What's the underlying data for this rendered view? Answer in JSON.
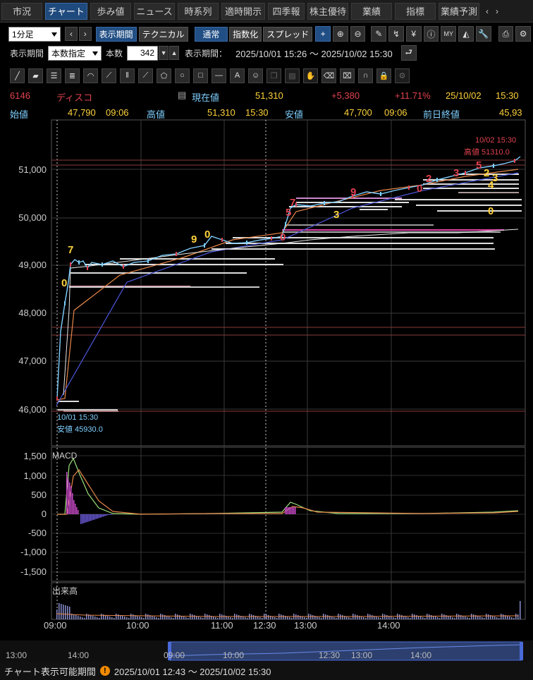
{
  "tabs": [
    {
      "label": "市況",
      "active": false
    },
    {
      "label": "チャート",
      "active": true
    },
    {
      "label": "歩み値",
      "active": false
    },
    {
      "label": "ニュース",
      "active": false
    },
    {
      "label": "時系列",
      "active": false
    },
    {
      "label": "適時開示",
      "active": false
    },
    {
      "label": "四季報",
      "active": false
    },
    {
      "label": "株主優待",
      "active": false
    },
    {
      "label": "業績",
      "active": false
    },
    {
      "label": "指標",
      "active": false
    },
    {
      "label": "業績予測",
      "active": false
    }
  ],
  "toolbar": {
    "interval": "1分足",
    "period_button": "表示期間",
    "technical_button": "テクニカル",
    "normal_button": "通常",
    "index_button": "指数化",
    "spread_button": "スプレッド",
    "icons": [
      "plus-icon",
      "zoom-in-icon",
      "zoom-out-icon",
      "pen-icon",
      "signal-icon",
      "yen-icon",
      "info-icon",
      "my-icon",
      "area-chart-icon",
      "wrench-icon",
      "print-icon",
      "settings-icon"
    ]
  },
  "period": {
    "label": "表示期間",
    "mode": "本数指定",
    "count_label": "本数",
    "count": "342",
    "range_label": "表示期間：",
    "range": "2025/10/01 15:26 ～ 2025/10/02 15:30"
  },
  "drawing_tools": [
    "line-tool-icon",
    "ruler-icon",
    "hlines-icon",
    "hlines-dense-icon",
    "arc-icon",
    "fan-icon",
    "vlines-icon",
    "fib-icon",
    "pentagon-icon",
    "circle-icon",
    "rectangle-icon",
    "hline-icon",
    "text-icon",
    "sticker-icon",
    "copy-icon",
    "notes-icon",
    "hand-icon",
    "eraser-icon",
    "erase-all-icon",
    "magnet-icon",
    "lock-icon",
    "gear-icon"
  ],
  "quote": {
    "code": "6146",
    "name": "ディスコ",
    "current_label": "現在値",
    "current": "51,310",
    "change": "+5,380",
    "change_pct": "+11.71%",
    "date": "25/10/02",
    "time": "15:30",
    "open_label": "始値",
    "open": "47,790",
    "open_time": "09:06",
    "high_label": "高値",
    "high": "51,310",
    "high_time": "15:30",
    "low_label": "安値",
    "low": "47,700",
    "low_time": "09:06",
    "prev_label": "前日終値",
    "prev": "45,93"
  },
  "price_axis": [
    "51,000",
    "50,000",
    "49,000",
    "48,000",
    "47,000",
    "46,000"
  ],
  "macd_axis": [
    "1,500",
    "1,000",
    "500",
    "0",
    "-500",
    "-1,000",
    "-1,500"
  ],
  "panels": {
    "macd_label": "MACD",
    "volume_label": "出来高"
  },
  "time_axis": [
    "09:00",
    "10:00",
    "11:00",
    "12:30",
    "13:00",
    "14:00"
  ],
  "annotations": {
    "high_time": "10/02 15:30",
    "high_value": "高値 51310.0",
    "low_time": "10/01 15:30",
    "low_value": "安値 45930.0"
  },
  "td_counts": [
    {
      "t": "7",
      "c": "yellow"
    },
    {
      "t": "0",
      "c": "yellow"
    },
    {
      "t": "9",
      "c": "yellow"
    },
    {
      "t": "0",
      "c": "yellow"
    },
    {
      "t": "0",
      "c": "red"
    },
    {
      "t": "5",
      "c": "red"
    },
    {
      "t": "7",
      "c": "red"
    },
    {
      "t": "3",
      "c": "yellow"
    },
    {
      "t": "9",
      "c": "red"
    },
    {
      "t": "0",
      "c": "red"
    },
    {
      "t": "2",
      "c": "red"
    },
    {
      "t": "3",
      "c": "red"
    },
    {
      "t": "5",
      "c": "red"
    },
    {
      "t": "2",
      "c": "yellow"
    },
    {
      "t": "3",
      "c": "yellow"
    },
    {
      "t": "4",
      "c": "yellow"
    },
    {
      "t": "0",
      "c": "yellow"
    }
  ],
  "navigator_axis": [
    "13:00",
    "14:00",
    "09:00",
    "10:00",
    "12:30",
    "13:00",
    "14:00"
  ],
  "footer": {
    "label": "チャート表示可能期間",
    "range": "2025/10/01 12:43 ～ 2025/10/02 15:30"
  },
  "colors": {
    "up": "#e0424f",
    "yellow": "#ffd23a",
    "cyan": "#7fd0ff",
    "blue_line": "#4b56d8",
    "orange_line": "#e8874a",
    "white_line": "#e8e8e8"
  }
}
